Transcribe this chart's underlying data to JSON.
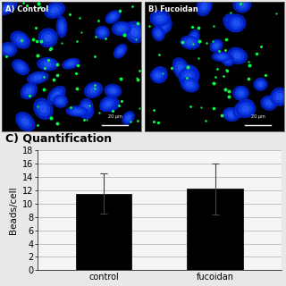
{
  "section_label": "C) Quantification",
  "label_left": "A) Control",
  "label_right": "B) Fucoidan",
  "categories": [
    "control",
    "fucoidan"
  ],
  "values": [
    11.5,
    12.2
  ],
  "errors": [
    3.0,
    3.8
  ],
  "bar_color": "#000000",
  "bar_width": 0.5,
  "ylabel": "Beads/cell",
  "ylim": [
    0,
    18
  ],
  "yticks": [
    0,
    2,
    4,
    6,
    8,
    10,
    12,
    14,
    16,
    18
  ],
  "background_color": "#e8e8e8",
  "panel_bg": "#f5f5f5",
  "section_label_fontsize": 9,
  "axis_fontsize": 7.5,
  "tick_fontsize": 7
}
